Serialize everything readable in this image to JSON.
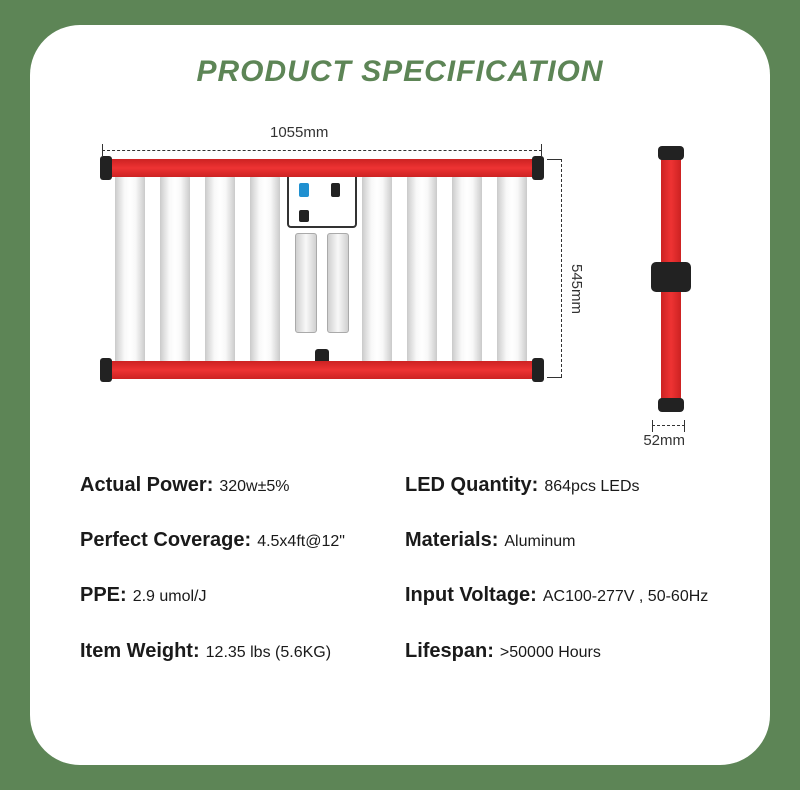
{
  "title": "PRODUCT SPECIFICATION",
  "dimensions": {
    "width": "1055mm",
    "height": "545mm",
    "depth": "52mm"
  },
  "specs": {
    "actual_power": {
      "label": "Actual Power:",
      "value": "320w±5%"
    },
    "led_quantity": {
      "label": "LED Quantity:",
      "value": "864pcs LEDs"
    },
    "coverage": {
      "label": "Perfect Coverage:",
      "value": "4.5x4ft@12\""
    },
    "materials": {
      "label": "Materials:",
      "value": "Aluminum"
    },
    "ppe": {
      "label": "PPE:",
      "value": "2.9 umol/J"
    },
    "voltage": {
      "label": "Input Voltage:",
      "value": "AC100-277V , 50-60Hz"
    },
    "weight": {
      "label": "Item Weight:",
      "value": "12.35 lbs (5.6KG)"
    },
    "lifespan": {
      "label": "Lifespan:",
      "value": ">50000 Hours"
    }
  },
  "colors": {
    "background": "#5d8556",
    "card": "#ffffff",
    "title": "#5d8556",
    "red_bar": "#dd2828",
    "black": "#222222"
  }
}
